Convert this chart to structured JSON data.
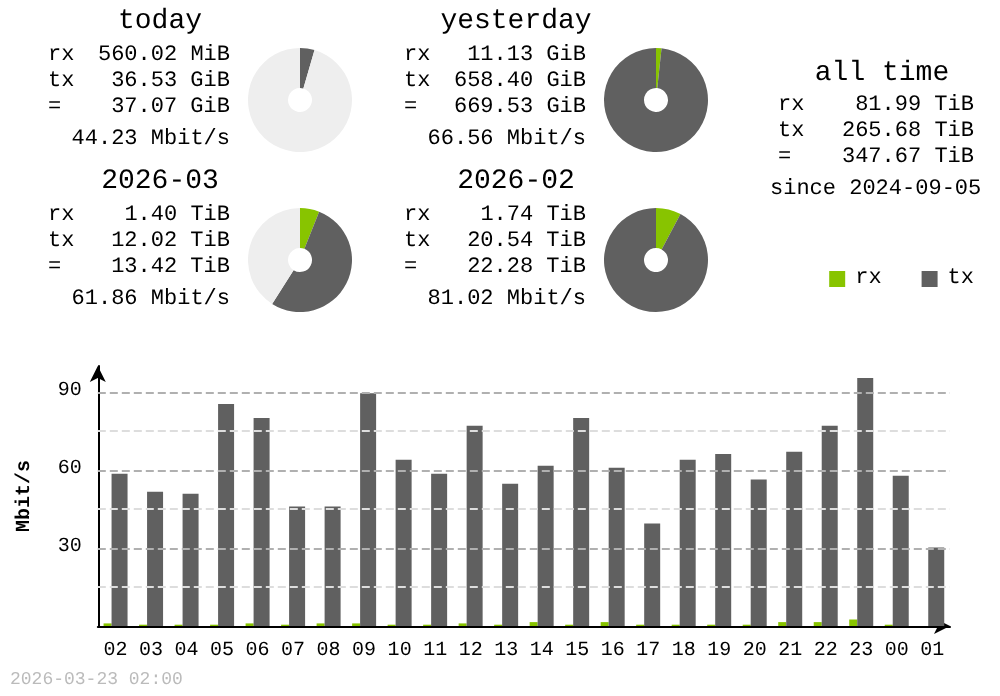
{
  "chart_data": [
    {
      "type": "donut",
      "title": "today",
      "categories": [
        null,
        null,
        null
      ],
      "values": [
        null,
        4.5,
        95.4
      ],
      "colors": [
        "#88c400",
        "#606060",
        "#eeeeee"
      ],
      "annotations": [
        "rx 560.02 MiB",
        "tx 36.53 GiB",
        "= 37.07 GiB",
        "44.23 Mbit/s"
      ]
    },
    {
      "type": "donut",
      "title": "yesterday",
      "categories": [
        null,
        null,
        null
      ],
      "values": [
        1.7,
        98.3,
        0
      ],
      "colors": [
        "#88c400",
        "#606060",
        "#eeeeee"
      ],
      "annotations": [
        "rx 11.13 GiB",
        "tx 658.40 GiB",
        "= 669.53 GiB",
        "66.56 Mbit/s"
      ]
    },
    {
      "type": "other",
      "title": "all time",
      "annotations": [
        "rx 81.99 TiB",
        "tx 265.68 TiB",
        "= 347.67 TiB",
        "since 2024-09-05"
      ]
    },
    {
      "type": "donut",
      "title": "2026-03",
      "categories": [
        null,
        null,
        null
      ],
      "values": [
        6,
        53,
        41
      ],
      "colors": [
        "#88c400",
        "#606060",
        "#eeeeee"
      ],
      "annotations": [
        "rx 1.40 TiB",
        "tx 12.02 TiB",
        "= 13.42 TiB",
        "61.86 Mbit/s"
      ]
    },
    {
      "type": "donut",
      "title": "2026-02",
      "categories": [
        null,
        null,
        null
      ],
      "values": [
        7.8,
        92.2,
        0
      ],
      "colors": [
        "#88c400",
        "#606060",
        "#eeeeee"
      ],
      "annotations": [
        "rx 1.74 TiB",
        "tx 20.54 TiB",
        "= 22.28 TiB",
        "81.02 Mbit/s"
      ]
    },
    {
      "type": "bar",
      "ylabel": "Mbit/s",
      "categories": [
        "02",
        "03",
        "04",
        "05",
        "06",
        "07",
        "08",
        "09",
        "10",
        "11",
        "12",
        "13",
        "14",
        "15",
        "16",
        "17",
        "18",
        "19",
        "20",
        "21",
        "22",
        "23",
        "00",
        "01"
      ],
      "series": [
        {
          "name": "rx",
          "color": "#88c400",
          "values": [
            1,
            0.5,
            0.5,
            0.5,
            1,
            0.5,
            1,
            1,
            0.5,
            0.5,
            1,
            0.5,
            1.5,
            0.5,
            1.5,
            0.5,
            0.5,
            0.5,
            0.5,
            1.5,
            1.5,
            2.5,
            0.5,
            0
          ]
        },
        {
          "name": "tx",
          "color": "#606060",
          "values": [
            58.6,
            51.6,
            50.9,
            85.4,
            80,
            46,
            46,
            89.5,
            63.9,
            58.6,
            77,
            54.7,
            61.6,
            80,
            60.9,
            39.4,
            63.9,
            66.2,
            56.3,
            67,
            77,
            95.4,
            57.8,
            30.2
          ]
        }
      ],
      "ylim": [
        0,
        100
      ],
      "yticks": [
        {
          "value": 15,
          "label": null
        },
        30,
        {
          "value": 45,
          "label": null
        },
        60,
        {
          "value": 75,
          "label": null
        },
        90
      ],
      "grid": "y",
      "legend": "top right",
      "annotations": [
        "2026-03-23 02:00"
      ]
    }
  ]
}
